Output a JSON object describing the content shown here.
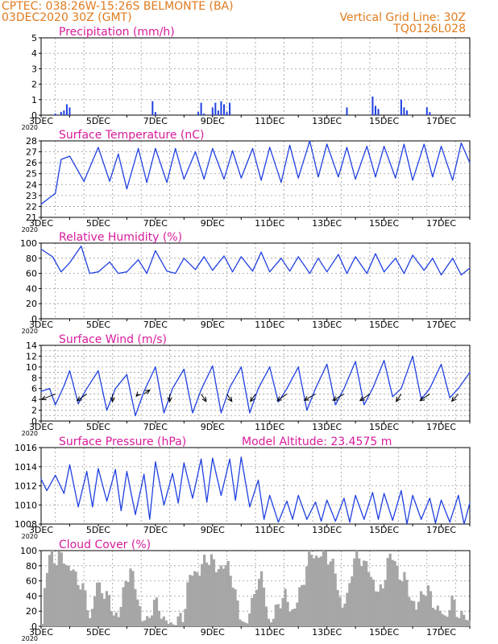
{
  "header": {
    "left_line1": "CPTEC:   038:26W-15:26S   BELMONTE (BA)",
    "left_line2": "03DEC2020 30Z (GMT)",
    "right_line1": "Vertical Grid Line: 30Z",
    "right_line2": "TQ0126L028"
  },
  "colors": {
    "header": "#e07b1e",
    "title": "#d81b9a",
    "line": "#2040e0",
    "cloud": "#a6a6a6",
    "grid": "#9a9a9a"
  },
  "chart_data": [
    {
      "id": "precip",
      "type": "bar",
      "title": "Precipitation (mm/h)",
      "ylim": [
        0,
        5
      ],
      "yticks": [
        0,
        1,
        2,
        3,
        4,
        5
      ],
      "xticks": [
        "3DEC",
        "5DEC",
        "7DEC",
        "9DEC",
        "11DEC",
        "13DEC",
        "15DEC",
        "17DEC"
      ],
      "x_year_label": "2020",
      "series": [
        {
          "x": [
            3.5,
            3.7,
            3.8,
            3.9,
            4.0,
            6.9,
            7.0,
            8.5,
            8.6,
            8.7,
            9.0,
            9.1,
            9.2,
            9.3,
            9.4,
            9.5,
            9.6,
            13.7,
            14.6,
            14.7,
            14.8,
            15.6,
            15.7,
            15.8,
            16.5,
            16.6
          ],
          "values": [
            0.1,
            0.2,
            0.3,
            0.7,
            0.5,
            0.9,
            0.2,
            0.2,
            0.8,
            0.1,
            0.5,
            0.8,
            0.3,
            0.9,
            0.7,
            0.2,
            0.8,
            0.5,
            1.2,
            0.6,
            0.4,
            1.0,
            0.5,
            0.3,
            0.5,
            0.2
          ]
        }
      ]
    },
    {
      "id": "temp",
      "type": "line",
      "title": "Surface Temperature (nC)",
      "ylim": [
        21,
        28
      ],
      "yticks": [
        21,
        22,
        23,
        24,
        25,
        26,
        27,
        28
      ],
      "xticks": [
        "3DEC",
        "5DEC",
        "7DEC",
        "9DEC",
        "11DEC",
        "13DEC",
        "15DEC",
        "17DEC"
      ],
      "x_year_label": "2020",
      "series": [
        {
          "x": [
            3.0,
            3.5,
            3.7,
            4.0,
            4.5,
            5.0,
            5.4,
            5.7,
            6.0,
            6.4,
            6.7,
            7.0,
            7.4,
            7.7,
            8.0,
            8.4,
            8.7,
            9.0,
            9.4,
            9.7,
            10.0,
            10.4,
            10.7,
            11.0,
            11.4,
            11.7,
            12.0,
            12.4,
            12.7,
            13.0,
            13.4,
            13.7,
            14.0,
            14.4,
            14.7,
            15.0,
            15.4,
            15.7,
            16.0,
            16.4,
            16.7,
            17.0,
            17.4,
            17.7,
            18.0
          ],
          "values": [
            22.2,
            23.2,
            26.3,
            26.6,
            24.3,
            27.4,
            24.3,
            26.8,
            23.6,
            27.3,
            24.2,
            27.3,
            24.2,
            27.3,
            24.5,
            27.0,
            24.5,
            27.3,
            24.5,
            27.1,
            24.6,
            27.3,
            24.4,
            27.4,
            24.2,
            27.6,
            24.6,
            28.1,
            24.7,
            27.7,
            24.7,
            27.4,
            24.5,
            27.5,
            24.7,
            27.5,
            24.6,
            27.7,
            24.4,
            27.7,
            24.7,
            27.5,
            24.4,
            27.8,
            26.0
          ]
        }
      ]
    },
    {
      "id": "rh",
      "type": "line",
      "title": "Relative Humidity (%)",
      "ylim": [
        0,
        100
      ],
      "yticks": [
        0,
        20,
        40,
        60,
        80,
        100
      ],
      "xticks": [
        "3DEC",
        "5DEC",
        "7DEC",
        "9DEC",
        "11DEC",
        "13DEC",
        "15DEC",
        "17DEC"
      ],
      "x_year_label": "2020",
      "series": [
        {
          "x": [
            3.0,
            3.4,
            3.7,
            4.0,
            4.4,
            4.7,
            5.0,
            5.4,
            5.7,
            6.0,
            6.4,
            6.7,
            7.0,
            7.4,
            7.7,
            8.0,
            8.4,
            8.7,
            9.0,
            9.4,
            9.7,
            10.0,
            10.4,
            10.7,
            11.0,
            11.4,
            11.7,
            12.0,
            12.4,
            12.7,
            13.0,
            13.4,
            13.7,
            14.0,
            14.4,
            14.7,
            15.0,
            15.4,
            15.7,
            16.0,
            16.4,
            16.7,
            17.0,
            17.4,
            17.7,
            18.0
          ],
          "values": [
            92,
            82,
            62,
            74,
            96,
            60,
            62,
            75,
            60,
            62,
            78,
            60,
            90,
            63,
            60,
            80,
            65,
            82,
            64,
            83,
            62,
            82,
            63,
            88,
            62,
            80,
            63,
            82,
            60,
            80,
            62,
            85,
            60,
            82,
            60,
            86,
            62,
            80,
            60,
            84,
            64,
            80,
            58,
            80,
            58,
            67
          ]
        }
      ]
    },
    {
      "id": "wind",
      "type": "line",
      "title": "Surface Wind (m/s)",
      "ylim": [
        0,
        14
      ],
      "yticks": [
        0,
        1,
        2,
        3,
        4,
        5,
        6,
        7,
        8,
        9,
        10,
        11,
        12,
        13,
        14
      ],
      "ytick_labels": [
        0,
        2,
        4,
        6,
        8,
        10,
        12,
        14
      ],
      "xticks": [
        "3DEC",
        "5DEC",
        "7DEC",
        "9DEC",
        "11DEC",
        "13DEC",
        "15DEC",
        "17DEC"
      ],
      "x_year_label": "2020",
      "series": [
        {
          "x": [
            3.0,
            3.3,
            3.5,
            3.8,
            4.0,
            4.3,
            4.6,
            5.0,
            5.3,
            5.6,
            6.0,
            6.3,
            6.6,
            7.0,
            7.3,
            7.6,
            8.0,
            8.3,
            8.6,
            9.0,
            9.3,
            9.6,
            10.0,
            10.3,
            10.6,
            11.0,
            11.3,
            11.6,
            12.0,
            12.3,
            12.6,
            13.0,
            13.3,
            13.6,
            14.0,
            14.3,
            14.6,
            15.0,
            15.3,
            15.6,
            16.0,
            16.3,
            16.6,
            17.0,
            17.3,
            17.6,
            18.0
          ],
          "values": [
            5.5,
            6.0,
            3.0,
            6.5,
            9.3,
            3.2,
            6.0,
            9.3,
            2.0,
            6.0,
            8.6,
            1.0,
            5.5,
            10.0,
            1.5,
            6.0,
            9.6,
            1.5,
            5.8,
            10.2,
            1.5,
            6.2,
            10.0,
            1.5,
            6.0,
            10.0,
            3.5,
            6.0,
            10.0,
            2.0,
            6.0,
            10.5,
            3.0,
            6.0,
            11.0,
            3.0,
            6.0,
            11.2,
            4.5,
            6.0,
            12.0,
            4.0,
            6.0,
            10.5,
            4.3,
            6.0,
            9.0
          ]
        }
      ],
      "arrows": [
        {
          "x": 3.5,
          "dir": 225,
          "len": 1
        },
        {
          "x": 4.6,
          "dir": 240,
          "len": 1
        },
        {
          "x": 5.5,
          "dir": 270,
          "len": 1
        },
        {
          "x": 6.4,
          "dir": 250,
          "len": 0.3
        },
        {
          "x": 6.6,
          "dir": 60,
          "len": 0.6
        },
        {
          "x": 7.5,
          "dir": 270,
          "len": 1
        },
        {
          "x": 8.6,
          "dir": 285,
          "len": 1
        },
        {
          "x": 9.5,
          "dir": 285,
          "len": 1
        },
        {
          "x": 10.5,
          "dir": 255,
          "len": 1
        },
        {
          "x": 11.6,
          "dir": 240,
          "len": 1
        },
        {
          "x": 12.6,
          "dir": 235,
          "len": 1
        },
        {
          "x": 13.6,
          "dir": 235,
          "len": 1
        },
        {
          "x": 14.5,
          "dir": 240,
          "len": 1
        },
        {
          "x": 15.6,
          "dir": 255,
          "len": 1
        },
        {
          "x": 16.6,
          "dir": 240,
          "len": 1
        },
        {
          "x": 17.6,
          "dir": 250,
          "len": 1
        }
      ]
    },
    {
      "id": "pres",
      "type": "line",
      "title": "Surface Pressure (hPa)",
      "subtitle": "Model Altitude: 23.4575 m",
      "ylim": [
        1008,
        1016
      ],
      "yticks": [
        1008,
        1010,
        1012,
        1014,
        1016
      ],
      "xticks": [
        "3DEC",
        "5DEC",
        "7DEC",
        "9DEC",
        "11DEC",
        "13DEC",
        "15DEC",
        "17DEC"
      ],
      "x_year_label": "2020",
      "series": [
        {
          "x": [
            3.0,
            3.2,
            3.5,
            3.8,
            4.0,
            4.3,
            4.6,
            4.8,
            5.0,
            5.3,
            5.6,
            5.8,
            6.0,
            6.3,
            6.6,
            6.8,
            7.0,
            7.3,
            7.6,
            7.8,
            8.0,
            8.3,
            8.6,
            8.8,
            9.0,
            9.3,
            9.6,
            9.8,
            10.0,
            10.3,
            10.6,
            10.8,
            11.0,
            11.3,
            11.6,
            11.8,
            12.0,
            12.3,
            12.6,
            12.8,
            13.0,
            13.3,
            13.6,
            13.8,
            14.0,
            14.3,
            14.6,
            14.8,
            15.0,
            15.3,
            15.6,
            15.8,
            16.0,
            16.3,
            16.6,
            16.8,
            17.0,
            17.3,
            17.6,
            17.8,
            18.0
          ],
          "values": [
            1012.7,
            1011.5,
            1013.1,
            1011.2,
            1014.2,
            1009.8,
            1013.5,
            1009.8,
            1013.8,
            1010.4,
            1013.7,
            1009.4,
            1013.5,
            1009.0,
            1013.2,
            1008.5,
            1014.5,
            1010.0,
            1013.3,
            1010.2,
            1014.4,
            1010.7,
            1014.8,
            1010.3,
            1014.9,
            1011.0,
            1014.8,
            1010.5,
            1015.0,
            1009.8,
            1012.6,
            1008.5,
            1011.0,
            1008.2,
            1010.4,
            1008.5,
            1011.0,
            1008.5,
            1010.3,
            1008.3,
            1010.5,
            1008.3,
            1010.7,
            1008.2,
            1011.0,
            1008.5,
            1011.3,
            1008.5,
            1011.2,
            1008.4,
            1011.5,
            1008.0,
            1011.0,
            1008.5,
            1010.7,
            1008.1,
            1010.5,
            1008.2,
            1011.0,
            1008.0,
            1010.2
          ]
        }
      ]
    },
    {
      "id": "cloud",
      "type": "area",
      "title": "Cloud Cover (%)",
      "ylim": [
        0,
        100
      ],
      "yticks": [
        0,
        20,
        40,
        60,
        80,
        100
      ],
      "xticks": [
        "3DEC",
        "5DEC",
        "7DEC",
        "9DEC",
        "11DEC",
        "13DEC",
        "15DEC",
        "17DEC"
      ],
      "x_year_label": "2020",
      "series": [
        {
          "x": [
            3.0,
            3.1,
            3.3,
            3.5,
            3.7,
            3.9,
            4.1,
            4.3,
            4.5,
            4.7,
            4.9,
            5.1,
            5.3,
            5.5,
            5.7,
            5.9,
            6.1,
            6.3,
            6.5,
            6.7,
            6.9,
            7.1,
            7.3,
            7.5,
            7.7,
            7.9,
            8.1,
            8.3,
            8.5,
            8.7,
            8.9,
            9.1,
            9.3,
            9.5,
            9.7,
            9.9,
            10.1,
            10.3,
            10.5,
            10.7,
            10.9,
            11.1,
            11.3,
            11.5,
            11.7,
            11.9,
            12.1,
            12.3,
            12.5,
            12.7,
            12.9,
            13.1,
            13.3,
            13.5,
            13.7,
            13.9,
            14.1,
            14.3,
            14.5,
            14.7,
            14.9,
            15.1,
            15.3,
            15.5,
            15.7,
            15.9,
            16.1,
            16.3,
            16.5,
            16.7,
            16.9,
            17.1,
            17.3,
            17.5,
            17.7,
            17.9,
            18.0
          ],
          "values": [
            5,
            60,
            98,
            88,
            92,
            80,
            70,
            60,
            40,
            10,
            55,
            50,
            35,
            20,
            10,
            65,
            70,
            50,
            5,
            10,
            30,
            25,
            5,
            2,
            10,
            5,
            60,
            70,
            75,
            85,
            95,
            70,
            85,
            75,
            60,
            10,
            5,
            20,
            60,
            65,
            10,
            10,
            35,
            40,
            20,
            30,
            55,
            90,
            95,
            92,
            98,
            88,
            60,
            25,
            40,
            95,
            85,
            90,
            60,
            55,
            40,
            98,
            85,
            70,
            60,
            40,
            20,
            50,
            45,
            30,
            20,
            10,
            35,
            20,
            15,
            5,
            5
          ]
        }
      ]
    }
  ]
}
